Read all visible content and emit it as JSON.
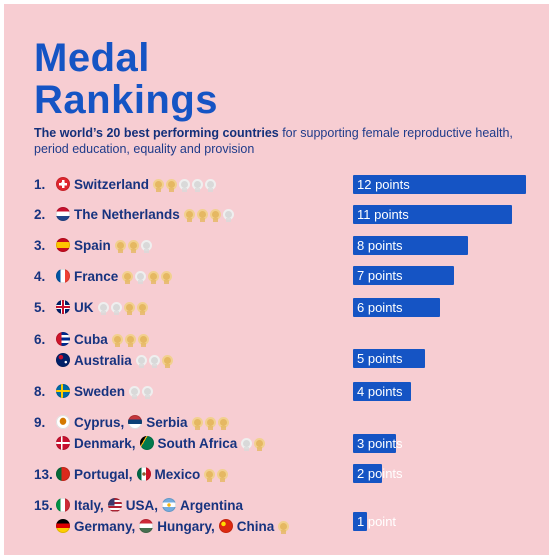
{
  "title": "Medal Rankings",
  "subtitle_bold": "The world’s 20 best performing countries",
  "subtitle_rest": " for supporting female reproductive health, period education, equality and provision",
  "colors": {
    "background": "#f7cdd2",
    "accent": "#1554c4",
    "text": "#17337f",
    "gold": "#e5b862",
    "silver": "#d9d9d9"
  },
  "chart_data": {
    "type": "bar",
    "orientation": "horizontal",
    "categories": [
      "Switzerland",
      "The Netherlands",
      "Spain",
      "France",
      "UK",
      "Cuba, Australia",
      "Sweden",
      "Cyprus, Serbia, Denmark, South Africa",
      "Portugal, Mexico",
      "Italy, USA, Argentina, Germany, Hungary, China"
    ],
    "values": [
      12,
      11,
      8,
      7,
      6,
      5,
      4,
      3,
      2,
      1
    ],
    "xlim": [
      0,
      12
    ],
    "bar_labels": [
      "12 points",
      "11 points",
      "8 points",
      "7 points",
      "6 points",
      "5 points",
      "4 points",
      "3 points",
      "2 points",
      "1 point"
    ]
  },
  "rows": [
    {
      "rank": "1.",
      "countries": [
        {
          "name": "Switzerland",
          "flag": "switzerland"
        }
      ],
      "medals": [
        "gold",
        "gold",
        "silver",
        "silver",
        "silver"
      ]
    },
    {
      "rank": "2.",
      "countries": [
        {
          "name": "The Netherlands",
          "flag": "netherlands"
        }
      ],
      "medals": [
        "gold",
        "gold",
        "gold",
        "silver"
      ]
    },
    {
      "rank": "3.",
      "countries": [
        {
          "name": "Spain",
          "flag": "spain"
        }
      ],
      "medals": [
        "gold",
        "gold",
        "silver"
      ]
    },
    {
      "rank": "4.",
      "countries": [
        {
          "name": "France",
          "flag": "france"
        }
      ],
      "medals": [
        "gold",
        "silver",
        "gold",
        "gold"
      ]
    },
    {
      "rank": "5.",
      "countries": [
        {
          "name": "UK",
          "flag": "uk"
        }
      ],
      "medals": [
        "silver",
        "silver",
        "gold",
        "gold"
      ]
    },
    {
      "rank": "6.",
      "countries": [
        {
          "name": "Cuba",
          "flag": "cuba"
        }
      ],
      "medals": [
        "gold",
        "gold",
        "gold"
      ]
    },
    {
      "rank": "",
      "countries": [
        {
          "name": "Australia",
          "flag": "australia"
        }
      ],
      "medals": [
        "silver",
        "silver",
        "gold"
      ]
    },
    {
      "rank": "8.",
      "countries": [
        {
          "name": "Sweden",
          "flag": "sweden"
        }
      ],
      "medals": [
        "silver",
        "silver"
      ]
    },
    {
      "rank": "9.",
      "countries": [
        {
          "name": "Cyprus",
          "flag": "cyprus"
        },
        {
          "name": "Serbia",
          "flag": "serbia"
        }
      ],
      "medals": [
        "gold",
        "gold",
        "gold"
      ]
    },
    {
      "rank": "",
      "countries": [
        {
          "name": "Denmark",
          "flag": "denmark"
        },
        {
          "name": "South Africa",
          "flag": "southafrica"
        }
      ],
      "medals": [
        "silver",
        "gold"
      ]
    },
    {
      "rank": "13.",
      "countries": [
        {
          "name": "Portugal",
          "flag": "portugal"
        },
        {
          "name": "Mexico",
          "flag": "mexico"
        }
      ],
      "medals": [
        "gold",
        "gold"
      ]
    },
    {
      "rank": "15.",
      "countries": [
        {
          "name": "Italy",
          "flag": "italy"
        },
        {
          "name": "USA",
          "flag": "usa"
        },
        {
          "name": "Argentina",
          "flag": "argentina"
        }
      ],
      "medals": []
    },
    {
      "rank": "",
      "countries": [
        {
          "name": "Germany",
          "flag": "germany"
        },
        {
          "name": "Hungary",
          "flag": "hungary"
        },
        {
          "name": "China",
          "flag": "china"
        }
      ],
      "medals": [
        "gold"
      ]
    }
  ]
}
